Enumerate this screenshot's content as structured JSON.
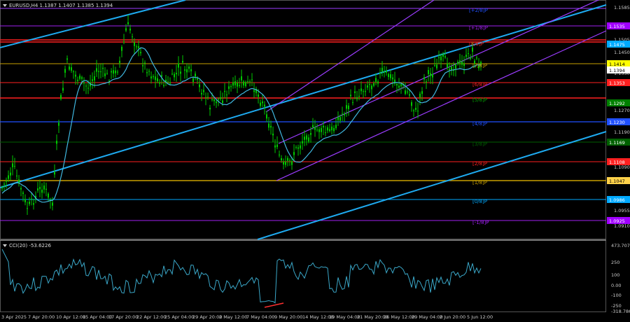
{
  "chart_header": "EURUSD,H4  1.1387 1.1407 1.1385 1.1394",
  "indicator_header": "CCI(20) -53.6226",
  "colors": {
    "background": "#000000",
    "candle": "#00c800",
    "ma": "#40b8e0",
    "trend": "#1eaaf0",
    "channel": "#9b3cff",
    "red_level": "#ff2020",
    "blue_level": "#2050ff",
    "gold_level": "#c8a000",
    "purple_level": "#a020f0",
    "cci": "#3aa7c8",
    "divergence": "#ff3030"
  },
  "price_axis": {
    "ticks": [
      "1.1585",
      "1.1505",
      "1.1450",
      "1.1350",
      "1.1270",
      "1.1190",
      "1.1090",
      "1.1010",
      "1.0955",
      "1.0910"
    ],
    "highlighted": [
      {
        "label": "1.1535",
        "bg": "#a000ff"
      },
      {
        "label": "1.1475",
        "bg": "#00aaff"
      },
      {
        "label": "1.1414",
        "bg": "#ffff00"
      },
      {
        "label": "1.1394",
        "bg": "#ffffff"
      },
      {
        "label": "1.1353",
        "bg": "#ff2020"
      },
      {
        "label": "1.1292",
        "bg": "#008000"
      },
      {
        "label": "1.1230",
        "bg": "#2050ff"
      },
      {
        "label": "1.1169",
        "bg": "#006000"
      },
      {
        "label": "1.1108",
        "bg": "#ff2020"
      },
      {
        "label": "1.1047",
        "bg": "#ffd24a"
      },
      {
        "label": "1.0986",
        "bg": "#00aaff"
      },
      {
        "label": "1.0925",
        "bg": "#a000ff"
      }
    ]
  },
  "murray_labels": [
    "[+2/8]P",
    "[+1/8]P",
    "[8/8]P",
    "[7/8]P",
    "[6/8]P",
    "[5/8]P",
    "[4/8]P",
    "[3/8]P",
    "[2/8]P",
    "[1/8]P",
    "[0/8]P",
    "[-1/8]P"
  ],
  "cci_axis": [
    "473.707",
    "250",
    "100",
    "0.00",
    "-100",
    "-250",
    "-318.786"
  ],
  "time_axis": [
    "3 Apr 2025",
    "7 Apr 20:00",
    "10 Apr 12:00",
    "15 Apr 04:00",
    "17 Apr 20:00",
    "22 Apr 12:00",
    "25 Apr 04:00",
    "29 Apr 20:00",
    "2 May 12:00",
    "7 May 04:00",
    "9 May 20:00",
    "14 May 12:00",
    "19 May 04:00",
    "21 May 20:00",
    "26 May 12:00",
    "29 May 04:00",
    "2 Jun 20:00",
    "5 Jun 12:00"
  ]
}
